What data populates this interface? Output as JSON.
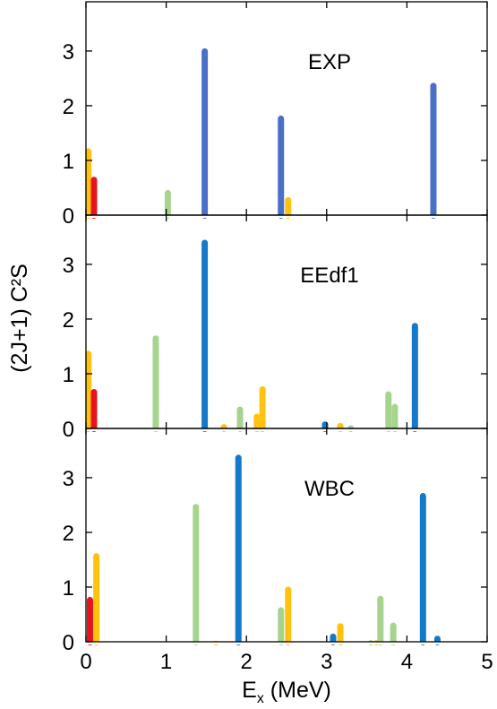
{
  "chart_data": {
    "type": "bar",
    "xlabel_base": "E",
    "xlabel_sub": "x",
    "xlabel_rest": " (MeV)",
    "ylabel": "(2J+1) C²S",
    "xlim": [
      0,
      5
    ],
    "ylim": [
      0,
      3.9
    ],
    "xticks": [
      0,
      1,
      2,
      3,
      4,
      5
    ],
    "yticks": [
      0,
      1,
      2,
      3
    ],
    "grid": false,
    "colors": {
      "red": "#e8141c",
      "yellow": "#ffc20e",
      "lightgreen": "#a6d48f",
      "blue_exp": "#4a6fc6",
      "blue": "#1479c9"
    },
    "panels": [
      {
        "label": "EXP",
        "bars": [
          {
            "x": 0.03,
            "value": 1.22,
            "color": "yellow"
          },
          {
            "x": 0.1,
            "value": 0.7,
            "color": "red"
          },
          {
            "x": 1.02,
            "value": 0.46,
            "color": "lightgreen"
          },
          {
            "x": 1.48,
            "value": 3.05,
            "color": "blue_exp"
          },
          {
            "x": 2.43,
            "value": 1.82,
            "color": "blue_exp"
          },
          {
            "x": 2.52,
            "value": 0.33,
            "color": "yellow"
          },
          {
            "x": 4.33,
            "value": 2.42,
            "color": "blue_exp"
          }
        ]
      },
      {
        "label": "EEdf1",
        "bars": [
          {
            "x": 0.03,
            "value": 1.42,
            "color": "yellow"
          },
          {
            "x": 0.1,
            "value": 0.72,
            "color": "red"
          },
          {
            "x": 0.87,
            "value": 1.7,
            "color": "lightgreen"
          },
          {
            "x": 1.48,
            "value": 3.45,
            "color": "blue"
          },
          {
            "x": 1.72,
            "value": 0.08,
            "color": "yellow"
          },
          {
            "x": 1.92,
            "value": 0.4,
            "color": "lightgreen"
          },
          {
            "x": 2.13,
            "value": 0.27,
            "color": "yellow"
          },
          {
            "x": 2.2,
            "value": 0.77,
            "color": "yellow"
          },
          {
            "x": 2.98,
            "value": 0.13,
            "color": "blue"
          },
          {
            "x": 3.17,
            "value": 0.1,
            "color": "yellow"
          },
          {
            "x": 3.3,
            "value": 0.06,
            "color": "lightgreen"
          },
          {
            "x": 3.77,
            "value": 0.68,
            "color": "lightgreen"
          },
          {
            "x": 3.85,
            "value": 0.45,
            "color": "lightgreen"
          },
          {
            "x": 4.1,
            "value": 1.93,
            "color": "blue"
          }
        ]
      },
      {
        "label": "WBC",
        "bars": [
          {
            "x": 0.05,
            "value": 0.82,
            "color": "red"
          },
          {
            "x": 0.13,
            "value": 1.62,
            "color": "yellow"
          },
          {
            "x": 1.37,
            "value": 2.52,
            "color": "lightgreen"
          },
          {
            "x": 1.62,
            "value": 0.02,
            "color": "yellow"
          },
          {
            "x": 1.9,
            "value": 3.42,
            "color": "blue"
          },
          {
            "x": 2.43,
            "value": 0.63,
            "color": "lightgreen"
          },
          {
            "x": 2.52,
            "value": 1.01,
            "color": "yellow"
          },
          {
            "x": 3.08,
            "value": 0.15,
            "color": "blue"
          },
          {
            "x": 3.17,
            "value": 0.34,
            "color": "yellow"
          },
          {
            "x": 3.55,
            "value": 0.03,
            "color": "lightgreen"
          },
          {
            "x": 3.62,
            "value": 0.03,
            "color": "yellow"
          },
          {
            "x": 3.67,
            "value": 0.84,
            "color": "lightgreen"
          },
          {
            "x": 3.83,
            "value": 0.35,
            "color": "lightgreen"
          },
          {
            "x": 4.2,
            "value": 2.72,
            "color": "blue"
          },
          {
            "x": 4.38,
            "value": 0.11,
            "color": "blue"
          }
        ]
      }
    ]
  }
}
